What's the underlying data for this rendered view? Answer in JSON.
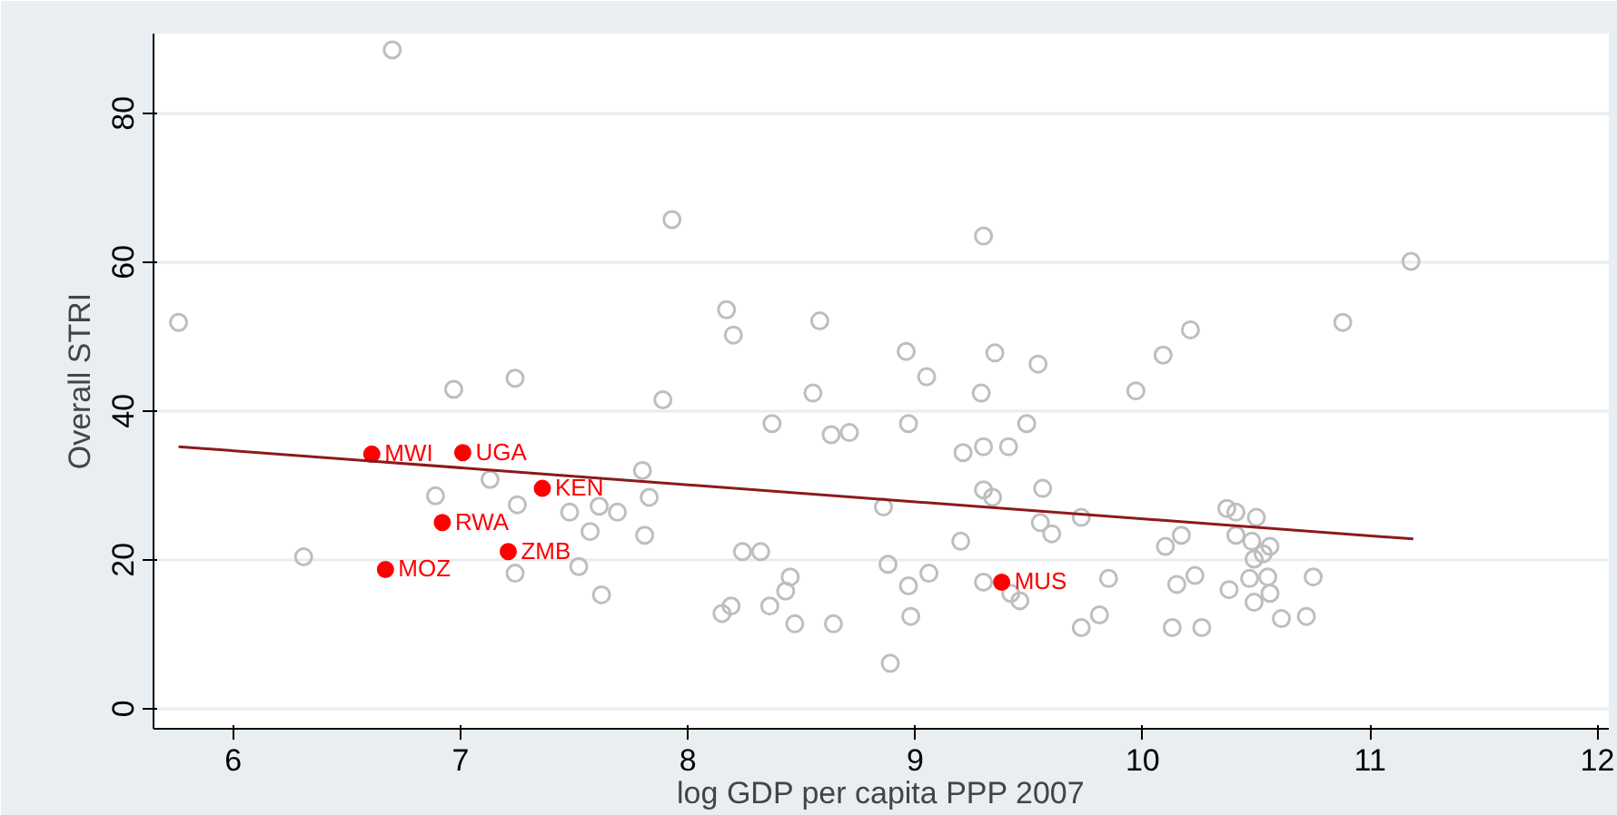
{
  "chart_data": {
    "type": "scatter",
    "xlabel": "log GDP per capita PPP 2007",
    "ylabel": "Overall STRI",
    "xlim": [
      5.65,
      12.05
    ],
    "ylim": [
      -2.7,
      90.7
    ],
    "xticks": [
      6,
      7,
      8,
      9,
      10,
      11,
      12
    ],
    "yticks": [
      0,
      20,
      40,
      60,
      80
    ],
    "grid": "y",
    "marker": "circle",
    "series": [
      {
        "color": "#bebebe",
        "x": [
          5.76,
          6.7,
          7.93,
          6.31,
          6.97,
          7.24,
          6.89,
          7.13,
          7.25,
          7.24,
          7.62,
          7.89,
          7.8,
          7.48,
          7.61,
          7.69,
          7.83,
          7.57,
          7.81,
          7.52,
          9.3,
          8.17,
          8.2,
          8.58,
          8.96,
          9.35,
          9.54,
          9.05,
          8.55,
          9.29,
          9.97,
          8.37,
          8.63,
          8.71,
          8.97,
          9.49,
          9.21,
          9.3,
          9.41,
          9.3,
          9.34,
          9.56,
          8.86,
          9.55,
          9.6,
          9.73,
          9.2,
          8.24,
          8.32,
          8.88,
          8.45,
          9.06,
          8.97,
          9.3,
          9.42,
          9.46,
          8.43,
          8.15,
          8.19,
          8.36,
          8.47,
          8.64,
          8.98,
          8.89,
          9.85,
          9.73,
          9.81,
          11.18,
          10.88,
          10.21,
          10.09,
          10.37,
          10.41,
          10.5,
          10.17,
          10.1,
          10.41,
          10.48,
          10.56,
          10.53,
          10.49,
          10.15,
          10.23,
          10.38,
          10.47,
          10.55,
          10.75,
          10.56,
          10.49,
          10.13,
          10.26,
          10.61,
          10.72
        ],
        "values": [
          51.9,
          88.5,
          65.7,
          20.4,
          42.9,
          44.4,
          28.6,
          30.8,
          27.4,
          18.2,
          15.3,
          41.5,
          32.0,
          26.4,
          27.2,
          26.4,
          28.4,
          23.8,
          23.3,
          19.1,
          63.5,
          53.6,
          50.2,
          52.1,
          48.0,
          47.8,
          46.3,
          44.6,
          42.4,
          42.4,
          42.7,
          38.3,
          36.8,
          37.1,
          38.3,
          38.3,
          34.4,
          35.2,
          35.2,
          29.4,
          28.4,
          29.6,
          27.1,
          25.0,
          23.5,
          25.7,
          22.5,
          21.1,
          21.1,
          19.4,
          17.7,
          18.2,
          16.5,
          17.0,
          15.5,
          14.5,
          15.8,
          12.8,
          13.8,
          13.8,
          11.4,
          11.4,
          12.4,
          6.1,
          17.5,
          10.9,
          12.6,
          60.1,
          51.9,
          50.9,
          47.5,
          26.9,
          26.4,
          25.7,
          23.3,
          21.8,
          23.3,
          22.5,
          21.8,
          20.8,
          20.1,
          16.7,
          17.9,
          16.0,
          17.5,
          17.7,
          17.7,
          15.5,
          14.3,
          10.9,
          10.9,
          12.1,
          12.4
        ]
      },
      {
        "color": "#ff0000",
        "x": [
          6.61,
          7.01,
          7.36,
          6.92,
          7.21,
          6.67,
          9.38
        ],
        "values": [
          34.2,
          34.4,
          29.6,
          25.0,
          21.1,
          18.7,
          17.0
        ]
      },
      {
        "type": "line",
        "color": "#8b1a1a",
        "marker": "none",
        "x": [
          5.76,
          11.19
        ],
        "values": [
          35.2,
          22.8
        ]
      }
    ],
    "annotations": [
      {
        "text": "MWI",
        "x": 6.61,
        "y": 34.2
      },
      {
        "text": "UGA",
        "x": 7.01,
        "y": 34.4
      },
      {
        "text": "KEN",
        "x": 7.36,
        "y": 29.6
      },
      {
        "text": "RWA",
        "x": 6.92,
        "y": 25.0
      },
      {
        "text": "ZMB",
        "x": 7.21,
        "y": 21.1
      },
      {
        "text": "MOZ",
        "x": 6.67,
        "y": 18.7
      },
      {
        "text": "MUS",
        "x": 9.38,
        "y": 17.0
      }
    ]
  }
}
